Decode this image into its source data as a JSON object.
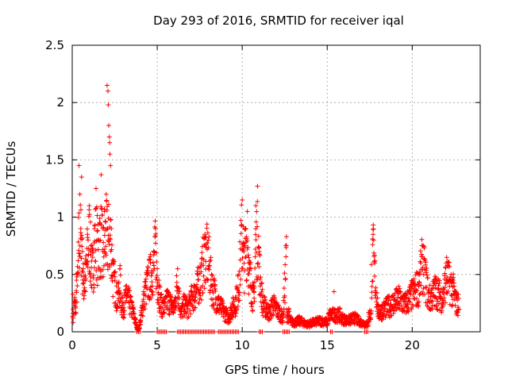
{
  "chart_data": {
    "type": "scatter",
    "title": "Day 293 of 2016, SRMTID for receiver iqal",
    "xlabel": "GPS time / hours",
    "ylabel": "SRMTID / TECUs",
    "xlim": [
      0,
      24
    ],
    "ylim": [
      0,
      2.5
    ],
    "xticks": [
      0,
      5,
      10,
      15,
      20
    ],
    "yticks": [
      0,
      0.5,
      1,
      1.5,
      2,
      2.5
    ],
    "xtick_labels": [
      "0",
      "5",
      "10",
      "15",
      "20"
    ],
    "ytick_labels": [
      "0",
      "0.5",
      "1",
      "1.5",
      "2",
      "2.5"
    ],
    "grid": true,
    "marker": "+",
    "color": "#ff0000",
    "series": [
      {
        "name": "SRMTID",
        "points": [
          [
            0.05,
            0.12
          ],
          [
            0.1,
            0.25
          ],
          [
            0.15,
            0.3
          ],
          [
            0.2,
            0.22
          ],
          [
            0.25,
            0.45
          ],
          [
            0.3,
            0.5
          ],
          [
            0.35,
            0.62
          ],
          [
            0.4,
            1.45
          ],
          [
            0.45,
            1.2
          ],
          [
            0.5,
            0.9
          ],
          [
            0.55,
            1.35
          ],
          [
            0.6,
            0.7
          ],
          [
            0.65,
            0.55
          ],
          [
            0.7,
            0.48
          ],
          [
            0.8,
            0.6
          ],
          [
            0.9,
            0.85
          ],
          [
            1.0,
            1.1
          ],
          [
            1.1,
            0.75
          ],
          [
            1.2,
            0.65
          ],
          [
            1.3,
            0.9
          ],
          [
            1.4,
            1.25
          ],
          [
            1.5,
            0.8
          ],
          [
            1.6,
            0.95
          ],
          [
            1.7,
            1.37
          ],
          [
            1.8,
            0.7
          ],
          [
            1.9,
            1.05
          ],
          [
            2.0,
            1.2
          ],
          [
            2.05,
            2.15
          ],
          [
            2.1,
            2.1
          ],
          [
            2.12,
            1.98
          ],
          [
            2.15,
            1.8
          ],
          [
            2.18,
            1.7
          ],
          [
            2.2,
            1.65
          ],
          [
            2.22,
            1.55
          ],
          [
            2.25,
            1.45
          ],
          [
            2.3,
            0.9
          ],
          [
            2.4,
            0.6
          ],
          [
            2.5,
            0.52
          ],
          [
            2.6,
            0.4
          ],
          [
            2.7,
            0.35
          ],
          [
            2.8,
            0.55
          ],
          [
            2.9,
            0.3
          ],
          [
            3.0,
            0.25
          ],
          [
            3.2,
            0.4
          ],
          [
            3.4,
            0.3
          ],
          [
            3.6,
            0.2
          ],
          [
            3.8,
            0.05
          ],
          [
            3.9,
            0.02
          ],
          [
            4.0,
            0.1
          ],
          [
            4.2,
            0.35
          ],
          [
            4.4,
            0.5
          ],
          [
            4.6,
            0.6
          ],
          [
            4.8,
            0.7
          ],
          [
            4.9,
            0.9
          ],
          [
            5.0,
            0.55
          ],
          [
            5.1,
            0.45
          ],
          [
            5.2,
            0.3
          ],
          [
            5.4,
            0.25
          ],
          [
            5.6,
            0.35
          ],
          [
            5.8,
            0.3
          ],
          [
            6.0,
            0.25
          ],
          [
            6.2,
            0.55
          ],
          [
            6.4,
            0.2
          ],
          [
            6.6,
            0.3
          ],
          [
            6.8,
            0.25
          ],
          [
            7.0,
            0.35
          ],
          [
            7.2,
            0.4
          ],
          [
            7.4,
            0.5
          ],
          [
            7.6,
            0.6
          ],
          [
            7.8,
            0.85
          ],
          [
            8.0,
            0.8
          ],
          [
            8.2,
            0.5
          ],
          [
            8.4,
            0.4
          ],
          [
            8.6,
            0.3
          ],
          [
            8.8,
            0.25
          ],
          [
            9.0,
            0.2
          ],
          [
            9.2,
            0.15
          ],
          [
            9.4,
            0.25
          ],
          [
            9.6,
            0.3
          ],
          [
            9.8,
            0.5
          ],
          [
            10.0,
            1.15
          ],
          [
            10.1,
            0.7
          ],
          [
            10.2,
            0.9
          ],
          [
            10.3,
            1.05
          ],
          [
            10.4,
            0.6
          ],
          [
            10.5,
            0.55
          ],
          [
            10.6,
            0.4
          ],
          [
            10.7,
            0.35
          ],
          [
            10.8,
            1.1
          ],
          [
            10.9,
            1.27
          ],
          [
            11.0,
            0.7
          ],
          [
            11.2,
            0.3
          ],
          [
            11.4,
            0.25
          ],
          [
            11.6,
            0.2
          ],
          [
            11.8,
            0.3
          ],
          [
            12.0,
            0.25
          ],
          [
            12.2,
            0.2
          ],
          [
            12.4,
            0.15
          ],
          [
            12.6,
            0.83
          ],
          [
            12.8,
            0.12
          ],
          [
            13.0,
            0.1
          ],
          [
            13.4,
            0.12
          ],
          [
            13.8,
            0.08
          ],
          [
            14.2,
            0.1
          ],
          [
            14.6,
            0.12
          ],
          [
            15.0,
            0.1
          ],
          [
            15.4,
            0.35
          ],
          [
            15.8,
            0.15
          ],
          [
            16.2,
            0.12
          ],
          [
            16.6,
            0.15
          ],
          [
            17.0,
            0.1
          ],
          [
            17.4,
            0.08
          ],
          [
            17.7,
            0.85
          ],
          [
            17.8,
            0.6
          ],
          [
            18.0,
            0.2
          ],
          [
            18.4,
            0.25
          ],
          [
            18.8,
            0.3
          ],
          [
            19.2,
            0.35
          ],
          [
            19.6,
            0.3
          ],
          [
            20.0,
            0.4
          ],
          [
            20.4,
            0.5
          ],
          [
            20.6,
            0.75
          ],
          [
            21.0,
            0.35
          ],
          [
            21.4,
            0.45
          ],
          [
            21.8,
            0.35
          ],
          [
            22.0,
            0.6
          ],
          [
            22.4,
            0.45
          ],
          [
            22.6,
            0.3
          ]
        ]
      }
    ],
    "zero_points_x": [
      [
        3.8,
        4.0
      ],
      [
        5.0,
        5.6
      ],
      [
        6.2,
        8.4
      ],
      [
        8.6,
        9.8
      ],
      [
        11.0,
        11.2
      ],
      [
        12.4,
        12.8
      ],
      [
        15.2,
        15.3
      ],
      [
        17.2,
        17.4
      ]
    ]
  }
}
